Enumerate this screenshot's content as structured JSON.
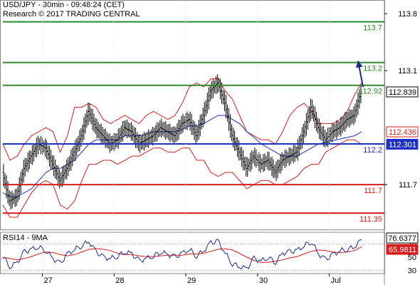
{
  "header": {
    "title": "USD/JPY - 30min - 09:48:24 (CET)",
    "copyright": "Research © 2017 TRADING CENTRAL"
  },
  "chart_data": {
    "type": "line",
    "instrument": "USD/JPY",
    "timeframe": "30min",
    "price_axis": {
      "ticks": [
        "113.8",
        "113.1",
        "111.7"
      ],
      "ylim": [
        111.15,
        113.95
      ]
    },
    "time_axis": {
      "ticks": [
        "27",
        "28",
        "29",
        "30",
        "Jul"
      ],
      "session_positions": [
        0.25,
        1.25,
        2.25,
        3.25,
        4.25
      ],
      "xlim": [
        -0.3,
        4.72
      ]
    },
    "price_series": {
      "name": "USD/JPY",
      "x": [
        -0.3,
        -0.2,
        -0.1,
        0.0,
        0.1,
        0.2,
        0.3,
        0.4,
        0.5,
        0.6,
        0.7,
        0.8,
        0.9,
        1.0,
        1.1,
        1.2,
        1.3,
        1.4,
        1.5,
        1.6,
        1.7,
        1.8,
        1.9,
        2.0,
        2.1,
        2.2,
        2.3,
        2.4,
        2.5,
        2.6,
        2.7,
        2.8,
        2.9,
        3.0,
        3.1,
        3.2,
        3.3,
        3.4,
        3.5,
        3.6,
        3.7,
        3.8,
        3.9,
        4.0,
        4.1,
        4.2,
        4.3,
        4.4,
        4.5,
        4.6,
        4.7
      ],
      "values": [
        111.85,
        111.5,
        111.55,
        111.9,
        112.05,
        112.2,
        112.15,
        111.95,
        111.75,
        111.9,
        112.1,
        112.3,
        112.6,
        112.4,
        112.3,
        112.2,
        112.25,
        112.4,
        112.35,
        112.2,
        112.25,
        112.3,
        112.4,
        112.35,
        112.3,
        112.45,
        112.5,
        112.3,
        112.55,
        112.85,
        112.95,
        112.7,
        112.3,
        112.1,
        111.9,
        112.05,
        111.95,
        112.0,
        111.85,
        112.0,
        112.05,
        112.1,
        112.35,
        112.65,
        112.4,
        112.25,
        112.35,
        112.4,
        112.5,
        112.55,
        112.839
      ]
    },
    "bollinger": {
      "upper": [
        112.2,
        112.0,
        112.05,
        112.2,
        112.3,
        112.35,
        112.4,
        112.35,
        112.1,
        112.3,
        112.65,
        112.65,
        112.7,
        112.65,
        112.5,
        112.45,
        112.5,
        112.55,
        112.5,
        112.45,
        112.55,
        112.6,
        112.55,
        112.5,
        112.55,
        112.7,
        112.9,
        112.95,
        112.9,
        113.0,
        113.0,
        112.85,
        112.75,
        112.55,
        112.35,
        112.3,
        112.25,
        112.25,
        112.2,
        112.35,
        112.55,
        112.65,
        112.7,
        112.6,
        112.45,
        112.45,
        112.45,
        112.5,
        112.6,
        112.8,
        112.95
      ],
      "lower": [
        111.45,
        111.3,
        111.3,
        111.45,
        111.6,
        111.7,
        111.75,
        111.7,
        111.45,
        111.4,
        111.5,
        111.75,
        111.95,
        111.95,
        112.0,
        112.0,
        111.95,
        112.0,
        112.05,
        112.05,
        112.1,
        112.15,
        112.15,
        112.1,
        112.1,
        112.15,
        112.15,
        112.0,
        112.0,
        111.85,
        111.8,
        111.85,
        111.85,
        111.75,
        111.65,
        111.7,
        111.75,
        111.75,
        111.7,
        111.7,
        111.75,
        111.8,
        111.9,
        111.95,
        111.95,
        112.1,
        112.15,
        112.2,
        112.25,
        112.25,
        112.2
      ]
    },
    "moving_average": {
      "values": [
        111.6,
        111.55,
        111.55,
        111.6,
        111.65,
        111.75,
        111.85,
        111.9,
        111.9,
        111.95,
        112.0,
        112.1,
        112.2,
        112.25,
        112.25,
        112.25,
        112.25,
        112.3,
        112.3,
        112.3,
        112.32,
        112.35,
        112.35,
        112.35,
        112.35,
        112.38,
        112.42,
        112.42,
        112.45,
        112.5,
        112.55,
        112.55,
        112.5,
        112.45,
        112.35,
        112.28,
        112.2,
        112.15,
        112.1,
        112.05,
        112.05,
        112.05,
        112.1,
        112.15,
        112.2,
        112.22,
        112.24,
        112.26,
        112.28,
        112.3,
        112.35
      ]
    },
    "levels": [
      {
        "label": "113.7",
        "value": 113.7,
        "color": "#2e8b2e"
      },
      {
        "label": "113.2",
        "value": 113.2,
        "color": "#2e8b2e"
      },
      {
        "label": "112.92",
        "value": 112.92,
        "color": "#2e8b2e"
      },
      {
        "label": "112.2",
        "value": 112.2,
        "color": "#1f2fc4"
      },
      {
        "label": "111.7",
        "value": 111.7,
        "color": "#d61c1c"
      },
      {
        "label": "111.35",
        "value": 111.35,
        "color": "#d61c1c"
      }
    ],
    "price_tags": [
      {
        "label": "112.839",
        "value": 112.839,
        "bg": "#ffffff",
        "fg": "#000000",
        "border": "#000000"
      },
      {
        "label": "112.436",
        "value": 112.436,
        "bg": "#ffffff",
        "fg": "#d61c1c",
        "border": "#d61c1c"
      },
      {
        "label": "112.301",
        "value": 112.301,
        "bg": "#1f2fc4",
        "fg": "#ffffff",
        "border": "#1f2fc4"
      }
    ],
    "forecast_arrow": {
      "from": [
        4.72,
        112.9
      ],
      "to": [
        4.98,
        113.22
      ],
      "color": "#1a2a8a"
    },
    "rsi": {
      "title": "RSI14 - 9MA",
      "ticks": [
        "70",
        "50",
        "30"
      ],
      "ylim": [
        25,
        88
      ],
      "tags": [
        {
          "label": "76.6377",
          "value": 76.6377,
          "bg": "#ffffff",
          "fg": "#000000",
          "border": "#000000"
        },
        {
          "label": "65.9811",
          "value": 65.9811,
          "bg": "#d61c1c",
          "fg": "#ffffff",
          "border": "#d61c1c"
        }
      ],
      "rsi_values": [
        52,
        35,
        42,
        58,
        62,
        66,
        60,
        48,
        40,
        55,
        62,
        68,
        74,
        58,
        50,
        48,
        52,
        58,
        55,
        44,
        48,
        52,
        58,
        54,
        50,
        56,
        62,
        52,
        60,
        72,
        74,
        56,
        40,
        36,
        32,
        48,
        44,
        50,
        42,
        56,
        58,
        60,
        68,
        74,
        55,
        46,
        54,
        60,
        62,
        66,
        76.6
      ],
      "ma_values": [
        50,
        48,
        46,
        48,
        51,
        55,
        58,
        57,
        54,
        52,
        54,
        58,
        62,
        63,
        62,
        60,
        56,
        54,
        54,
        52,
        51,
        51,
        52,
        53,
        53,
        53,
        55,
        55,
        56,
        59,
        62,
        63,
        61,
        56,
        50,
        45,
        42,
        42,
        44,
        46,
        49,
        51,
        55,
        59,
        61,
        60,
        58,
        57,
        58,
        60,
        66
      ]
    }
  }
}
